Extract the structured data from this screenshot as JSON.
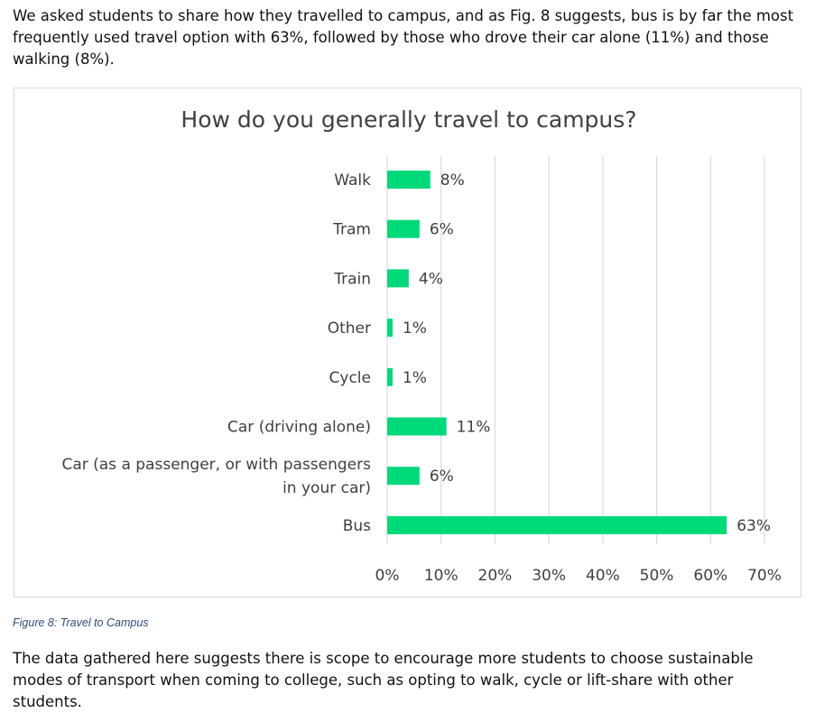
{
  "intro_text": "We asked students to share how they travelled to campus, and as Fig. 8 suggests, bus is by far the most frequently used travel option with 63%, followed by those who drove their car alone (11%) and those walking (8%).",
  "caption": "Figure 8: Travel to Campus",
  "outro_text": "The data gathered here suggests there is scope to encourage more students to choose sustainable modes of transport when coming to college, such as opting to walk, cycle or lift-share with other students.",
  "chart_data": {
    "type": "bar",
    "orientation": "horizontal",
    "title": "How do you generally travel to campus?",
    "categories": [
      [
        "Walk"
      ],
      [
        "Tram"
      ],
      [
        "Train"
      ],
      [
        "Other"
      ],
      [
        "Cycle"
      ],
      [
        "Car (driving alone)"
      ],
      [
        "Car (as a passenger, or with passengers",
        "in your car)"
      ],
      [
        "Bus"
      ]
    ],
    "values": [
      8,
      6,
      4,
      1,
      1,
      11,
      6,
      63
    ],
    "data_labels": [
      "8%",
      "6%",
      "4%",
      "1%",
      "1%",
      "11%",
      "6%",
      "63%"
    ],
    "xlim": [
      0,
      70
    ],
    "x_ticks": [
      0,
      10,
      20,
      30,
      40,
      50,
      60,
      70
    ],
    "x_tick_labels": [
      "0%",
      "10%",
      "20%",
      "30%",
      "40%",
      "50%",
      "60%",
      "70%"
    ],
    "grid": true,
    "legend": "none",
    "bar_color": "#00d97a",
    "grid_color": "#d9d9d9",
    "text_color": "#404040"
  }
}
